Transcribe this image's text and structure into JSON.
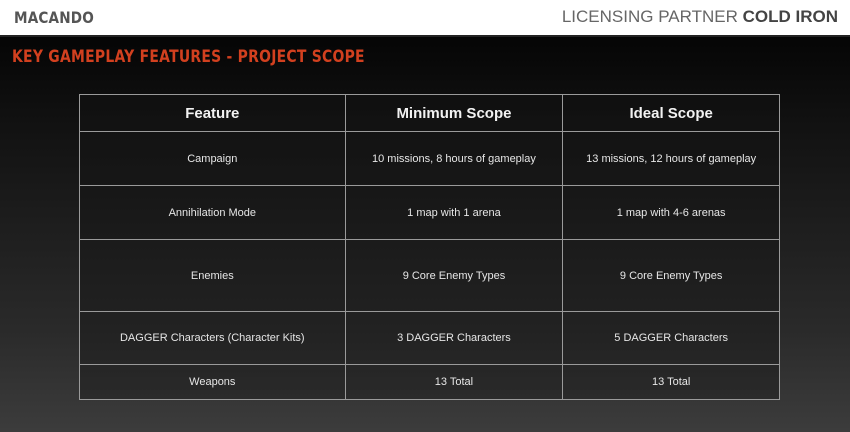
{
  "header": {
    "logo": "MACANDO",
    "partner_label": "LICENSING PARTNER",
    "partner_name": "COLD IRON"
  },
  "slide_title": "KEY GAMEPLAY FEATURES - PROJECT SCOPE",
  "table": {
    "columns": [
      "Feature",
      "Minimum Scope",
      "Ideal Scope"
    ],
    "rows": [
      [
        "Campaign",
        "10 missions, 8 hours of gameplay",
        "13 missions, 12 hours of gameplay"
      ],
      [
        "Annihilation Mode",
        "1 map with 1 arena",
        "1 map with 4-6 arenas"
      ],
      [
        "Enemies",
        "9 Core Enemy Types",
        "9 Core Enemy Types"
      ],
      [
        "DAGGER Characters (Character Kits)",
        "3 DAGGER Characters",
        "5 DAGGER Characters"
      ],
      [
        "Weapons",
        "13 Total",
        "13 Total"
      ]
    ]
  },
  "colors": {
    "accent": "#d2401f"
  }
}
